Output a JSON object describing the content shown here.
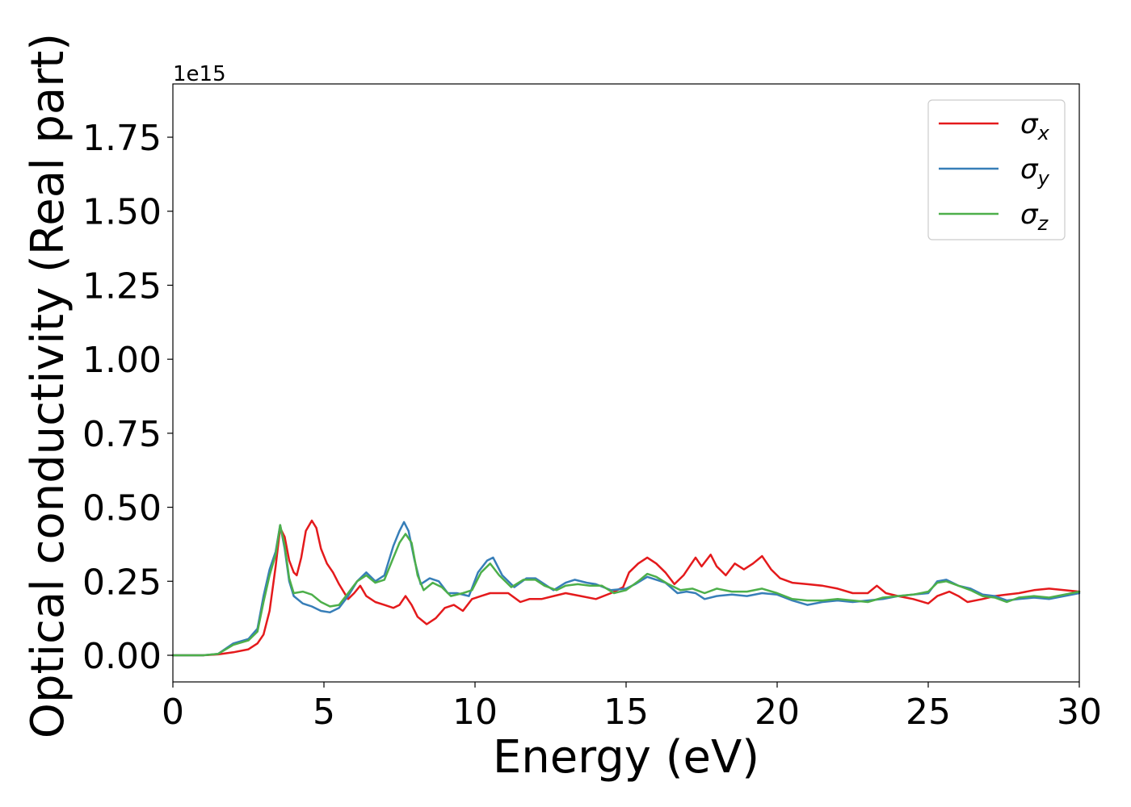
{
  "chart_data": {
    "type": "line",
    "title": "",
    "xlabel": "Energy (eV)",
    "ylabel": "Optical conductivity (Real part)",
    "y_offset_label": "1e15",
    "xlim": [
      0,
      30
    ],
    "ylim": [
      -0.09,
      1.93
    ],
    "y_scale": 1000000000000000.0,
    "grid": false,
    "legend_position": "top-right",
    "x_ticks": [
      0,
      5,
      10,
      15,
      20,
      25,
      30
    ],
    "x_tick_labels": [
      "0",
      "5",
      "10",
      "15",
      "20",
      "25",
      "30"
    ],
    "y_ticks": [
      0.0,
      0.25,
      0.5,
      0.75,
      1.0,
      1.25,
      1.5,
      1.75
    ],
    "y_tick_labels": [
      "0.00",
      "0.25",
      "0.50",
      "0.75",
      "1.00",
      "1.25",
      "1.50",
      "1.75"
    ],
    "series": [
      {
        "name": "σx",
        "legend_main": "σ",
        "legend_sub": "x",
        "color": "#e41a1c",
        "points": [
          [
            0,
            0
          ],
          [
            1,
            0
          ],
          [
            1.5,
            0.003
          ],
          [
            2,
            0.01
          ],
          [
            2.5,
            0.02
          ],
          [
            2.8,
            0.04
          ],
          [
            3.0,
            0.07
          ],
          [
            3.2,
            0.15
          ],
          [
            3.4,
            0.3
          ],
          [
            3.55,
            0.43
          ],
          [
            3.7,
            0.4
          ],
          [
            3.85,
            0.32
          ],
          [
            4.0,
            0.28
          ],
          [
            4.1,
            0.27
          ],
          [
            4.25,
            0.33
          ],
          [
            4.4,
            0.42
          ],
          [
            4.6,
            0.455
          ],
          [
            4.75,
            0.43
          ],
          [
            4.9,
            0.36
          ],
          [
            5.1,
            0.31
          ],
          [
            5.3,
            0.28
          ],
          [
            5.5,
            0.24
          ],
          [
            5.8,
            0.19
          ],
          [
            6.0,
            0.21
          ],
          [
            6.2,
            0.235
          ],
          [
            6.4,
            0.2
          ],
          [
            6.7,
            0.18
          ],
          [
            7.0,
            0.17
          ],
          [
            7.3,
            0.16
          ],
          [
            7.5,
            0.17
          ],
          [
            7.7,
            0.2
          ],
          [
            7.9,
            0.17
          ],
          [
            8.1,
            0.13
          ],
          [
            8.4,
            0.105
          ],
          [
            8.7,
            0.125
          ],
          [
            9.0,
            0.16
          ],
          [
            9.3,
            0.17
          ],
          [
            9.6,
            0.15
          ],
          [
            9.9,
            0.19
          ],
          [
            10.2,
            0.2
          ],
          [
            10.5,
            0.21
          ],
          [
            10.8,
            0.21
          ],
          [
            11.1,
            0.21
          ],
          [
            11.5,
            0.18
          ],
          [
            11.8,
            0.19
          ],
          [
            12.2,
            0.19
          ],
          [
            12.6,
            0.2
          ],
          [
            13.0,
            0.21
          ],
          [
            13.5,
            0.2
          ],
          [
            14.0,
            0.19
          ],
          [
            14.5,
            0.21
          ],
          [
            14.9,
            0.23
          ],
          [
            15.1,
            0.28
          ],
          [
            15.4,
            0.31
          ],
          [
            15.7,
            0.33
          ],
          [
            16.0,
            0.31
          ],
          [
            16.3,
            0.28
          ],
          [
            16.6,
            0.24
          ],
          [
            16.9,
            0.27
          ],
          [
            17.1,
            0.3
          ],
          [
            17.3,
            0.33
          ],
          [
            17.5,
            0.3
          ],
          [
            17.8,
            0.34
          ],
          [
            18.0,
            0.3
          ],
          [
            18.3,
            0.27
          ],
          [
            18.6,
            0.31
          ],
          [
            18.9,
            0.29
          ],
          [
            19.2,
            0.31
          ],
          [
            19.5,
            0.335
          ],
          [
            19.8,
            0.29
          ],
          [
            20.1,
            0.26
          ],
          [
            20.5,
            0.245
          ],
          [
            21.0,
            0.24
          ],
          [
            21.5,
            0.235
          ],
          [
            22.0,
            0.225
          ],
          [
            22.5,
            0.21
          ],
          [
            23.0,
            0.21
          ],
          [
            23.3,
            0.235
          ],
          [
            23.6,
            0.21
          ],
          [
            24.0,
            0.2
          ],
          [
            24.5,
            0.19
          ],
          [
            25.0,
            0.175
          ],
          [
            25.3,
            0.2
          ],
          [
            25.7,
            0.215
          ],
          [
            26.0,
            0.2
          ],
          [
            26.3,
            0.18
          ],
          [
            26.8,
            0.19
          ],
          [
            27.2,
            0.2
          ],
          [
            27.6,
            0.205
          ],
          [
            28.0,
            0.21
          ],
          [
            28.5,
            0.22
          ],
          [
            29.0,
            0.225
          ],
          [
            29.5,
            0.22
          ],
          [
            30.0,
            0.215
          ]
        ]
      },
      {
        "name": "σy",
        "legend_main": "σ",
        "legend_sub": "y",
        "color": "#377eb8",
        "points": [
          [
            0,
            0
          ],
          [
            1,
            0
          ],
          [
            1.5,
            0.005
          ],
          [
            2,
            0.04
          ],
          [
            2.5,
            0.055
          ],
          [
            2.8,
            0.09
          ],
          [
            3.0,
            0.2
          ],
          [
            3.2,
            0.29
          ],
          [
            3.4,
            0.35
          ],
          [
            3.55,
            0.44
          ],
          [
            3.7,
            0.36
          ],
          [
            3.85,
            0.25
          ],
          [
            4.0,
            0.2
          ],
          [
            4.3,
            0.175
          ],
          [
            4.6,
            0.165
          ],
          [
            4.9,
            0.15
          ],
          [
            5.2,
            0.145
          ],
          [
            5.5,
            0.16
          ],
          [
            5.8,
            0.2
          ],
          [
            6.1,
            0.25
          ],
          [
            6.4,
            0.28
          ],
          [
            6.7,
            0.25
          ],
          [
            7.0,
            0.27
          ],
          [
            7.3,
            0.37
          ],
          [
            7.5,
            0.42
          ],
          [
            7.65,
            0.45
          ],
          [
            7.8,
            0.42
          ],
          [
            8.0,
            0.32
          ],
          [
            8.2,
            0.24
          ],
          [
            8.5,
            0.26
          ],
          [
            8.8,
            0.25
          ],
          [
            9.1,
            0.21
          ],
          [
            9.4,
            0.21
          ],
          [
            9.8,
            0.2
          ],
          [
            10.1,
            0.28
          ],
          [
            10.4,
            0.32
          ],
          [
            10.6,
            0.33
          ],
          [
            10.9,
            0.27
          ],
          [
            11.3,
            0.23
          ],
          [
            11.7,
            0.26
          ],
          [
            12.0,
            0.26
          ],
          [
            12.3,
            0.24
          ],
          [
            12.6,
            0.22
          ],
          [
            13.0,
            0.245
          ],
          [
            13.3,
            0.255
          ],
          [
            13.7,
            0.245
          ],
          [
            14.0,
            0.24
          ],
          [
            14.5,
            0.22
          ],
          [
            15.0,
            0.225
          ],
          [
            15.3,
            0.24
          ],
          [
            15.7,
            0.265
          ],
          [
            16.0,
            0.255
          ],
          [
            16.3,
            0.245
          ],
          [
            16.7,
            0.21
          ],
          [
            17.0,
            0.215
          ],
          [
            17.3,
            0.21
          ],
          [
            17.6,
            0.19
          ],
          [
            18.0,
            0.2
          ],
          [
            18.5,
            0.205
          ],
          [
            19.0,
            0.2
          ],
          [
            19.5,
            0.21
          ],
          [
            20.0,
            0.205
          ],
          [
            20.5,
            0.185
          ],
          [
            21.0,
            0.17
          ],
          [
            21.5,
            0.18
          ],
          [
            22.0,
            0.185
          ],
          [
            22.5,
            0.18
          ],
          [
            23.0,
            0.185
          ],
          [
            23.5,
            0.19
          ],
          [
            24.0,
            0.2
          ],
          [
            24.5,
            0.205
          ],
          [
            25.0,
            0.21
          ],
          [
            25.3,
            0.25
          ],
          [
            25.6,
            0.255
          ],
          [
            26.0,
            0.235
          ],
          [
            26.4,
            0.225
          ],
          [
            26.8,
            0.205
          ],
          [
            27.2,
            0.2
          ],
          [
            27.6,
            0.185
          ],
          [
            28.0,
            0.19
          ],
          [
            28.5,
            0.195
          ],
          [
            29.0,
            0.19
          ],
          [
            29.5,
            0.2
          ],
          [
            30.0,
            0.21
          ]
        ]
      },
      {
        "name": "σz",
        "legend_main": "σ",
        "legend_sub": "z",
        "color": "#4daf4a",
        "points": [
          [
            0,
            0
          ],
          [
            1,
            0
          ],
          [
            1.5,
            0.005
          ],
          [
            2,
            0.035
          ],
          [
            2.5,
            0.05
          ],
          [
            2.8,
            0.08
          ],
          [
            3.0,
            0.18
          ],
          [
            3.2,
            0.27
          ],
          [
            3.4,
            0.34
          ],
          [
            3.55,
            0.44
          ],
          [
            3.7,
            0.37
          ],
          [
            3.85,
            0.26
          ],
          [
            4.0,
            0.21
          ],
          [
            4.3,
            0.215
          ],
          [
            4.6,
            0.205
          ],
          [
            4.9,
            0.18
          ],
          [
            5.2,
            0.165
          ],
          [
            5.5,
            0.17
          ],
          [
            5.8,
            0.21
          ],
          [
            6.1,
            0.25
          ],
          [
            6.4,
            0.27
          ],
          [
            6.7,
            0.245
          ],
          [
            7.0,
            0.255
          ],
          [
            7.3,
            0.33
          ],
          [
            7.5,
            0.38
          ],
          [
            7.7,
            0.41
          ],
          [
            7.9,
            0.38
          ],
          [
            8.1,
            0.27
          ],
          [
            8.3,
            0.22
          ],
          [
            8.6,
            0.245
          ],
          [
            8.9,
            0.23
          ],
          [
            9.2,
            0.2
          ],
          [
            9.6,
            0.21
          ],
          [
            9.9,
            0.22
          ],
          [
            10.2,
            0.28
          ],
          [
            10.5,
            0.31
          ],
          [
            10.8,
            0.27
          ],
          [
            11.2,
            0.23
          ],
          [
            11.6,
            0.255
          ],
          [
            12.0,
            0.255
          ],
          [
            12.3,
            0.235
          ],
          [
            12.7,
            0.22
          ],
          [
            13.0,
            0.235
          ],
          [
            13.4,
            0.24
          ],
          [
            13.8,
            0.235
          ],
          [
            14.2,
            0.235
          ],
          [
            14.6,
            0.21
          ],
          [
            15.0,
            0.22
          ],
          [
            15.4,
            0.25
          ],
          [
            15.7,
            0.275
          ],
          [
            16.0,
            0.265
          ],
          [
            16.4,
            0.24
          ],
          [
            16.8,
            0.22
          ],
          [
            17.2,
            0.225
          ],
          [
            17.6,
            0.21
          ],
          [
            18.0,
            0.225
          ],
          [
            18.5,
            0.215
          ],
          [
            19.0,
            0.215
          ],
          [
            19.5,
            0.225
          ],
          [
            20.0,
            0.21
          ],
          [
            20.5,
            0.19
          ],
          [
            21.0,
            0.185
          ],
          [
            21.5,
            0.185
          ],
          [
            22.0,
            0.19
          ],
          [
            22.5,
            0.185
          ],
          [
            23.0,
            0.18
          ],
          [
            23.5,
            0.195
          ],
          [
            24.0,
            0.2
          ],
          [
            24.5,
            0.205
          ],
          [
            25.0,
            0.215
          ],
          [
            25.3,
            0.245
          ],
          [
            25.6,
            0.25
          ],
          [
            26.0,
            0.235
          ],
          [
            26.4,
            0.22
          ],
          [
            26.8,
            0.2
          ],
          [
            27.2,
            0.195
          ],
          [
            27.6,
            0.18
          ],
          [
            28.0,
            0.195
          ],
          [
            28.5,
            0.2
          ],
          [
            29.0,
            0.195
          ],
          [
            29.5,
            0.205
          ],
          [
            30.0,
            0.215
          ]
        ]
      }
    ]
  }
}
